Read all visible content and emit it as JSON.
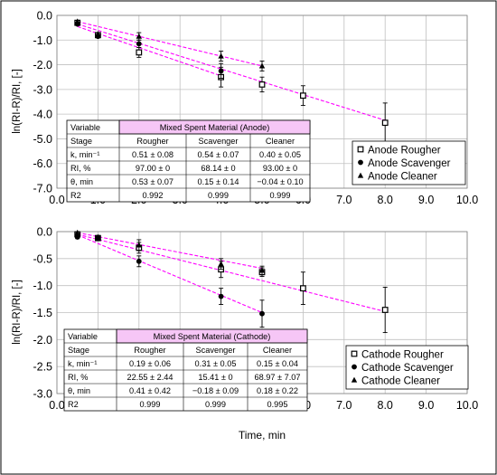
{
  "colors": {
    "grid": "#c0c0c0",
    "fit_line": "#ff00ff",
    "table_header_fill": "#f6c6f6",
    "marker": "#000000",
    "frame": "#000000"
  },
  "chart_data": [
    {
      "type": "scatter",
      "panel": "anode",
      "ylabel": "ln(RI-R)/RI, [-]",
      "xlabel": "",
      "xlim": [
        0,
        10
      ],
      "ylim": [
        -7,
        0
      ],
      "xticks": [
        "0.0",
        "1.0",
        "2.0",
        "3.0",
        "4.0",
        "5.0",
        "6.0",
        "7.0",
        "8.0",
        "9.0",
        "10.0"
      ],
      "yticks": [
        "0.0",
        "-1.0",
        "-2.0",
        "-3.0",
        "-4.0",
        "-5.0",
        "-6.0",
        "-7.0"
      ],
      "grid": true,
      "legend_position": "bottom-right",
      "series": [
        {
          "name": "Anode Rougher",
          "marker": "square",
          "x": [
            0.5,
            1,
            2,
            4,
            5,
            6,
            8
          ],
          "y": [
            -0.3,
            -0.8,
            -1.5,
            -2.5,
            -2.8,
            -3.25,
            -4.35
          ],
          "err": [
            0.05,
            0.05,
            0.2,
            0.4,
            0.3,
            0.4,
            0.8
          ]
        },
        {
          "name": "Anode Scavenger",
          "marker": "circle",
          "x": [
            0.5,
            1,
            2,
            4
          ],
          "y": [
            -0.35,
            -0.85,
            -1.15,
            -2.25
          ],
          "err": [
            0.05,
            0.05,
            0.15,
            0.3
          ]
        },
        {
          "name": "Anode Cleaner",
          "marker": "triangle",
          "x": [
            0.5,
            1,
            2,
            4,
            5
          ],
          "y": [
            -0.25,
            -0.75,
            -0.85,
            -1.65,
            -2.05
          ],
          "err": [
            0.05,
            0.05,
            0.15,
            0.2,
            0.2
          ]
        }
      ],
      "fit_lines": [
        {
          "x": [
            0.5,
            8
          ],
          "y": [
            -0.35,
            -4.25
          ]
        },
        {
          "x": [
            0.5,
            4
          ],
          "y": [
            -0.45,
            -2.45
          ]
        },
        {
          "x": [
            0.5,
            5
          ],
          "y": [
            -0.25,
            -2.05
          ]
        }
      ],
      "table": {
        "title": "Mixed Spent Material (Anode)",
        "header": [
          "Variable",
          "Stage",
          "Rougher",
          "Scavenger",
          "Cleaner"
        ],
        "rows": [
          [
            "k, min⁻¹",
            "0.51 ± 0.08",
            "0.54 ± 0.07",
            "0.40 ± 0.05"
          ],
          [
            "RI, %",
            "97.00 ± 0",
            "68.14 ± 0",
            "93.00 ± 0"
          ],
          [
            "θ, min",
            "0.53 ± 0.07",
            "0.15 ± 0.14",
            "−0.04 ± 0.10"
          ],
          [
            "R2",
            "0.992",
            "0.999",
            "0.999"
          ]
        ]
      }
    },
    {
      "type": "scatter",
      "panel": "cathode",
      "ylabel": "ln(RI-R)/RI, [-]",
      "xlabel": "Time, min",
      "xlim": [
        0,
        10
      ],
      "ylim": [
        -3,
        0
      ],
      "xticks": [
        "0.0",
        "1.0",
        "2.0",
        "3.0",
        "4.0",
        "5.0",
        "6.0",
        "7.0",
        "8.0",
        "9.0",
        "10.0"
      ],
      "yticks": [
        "0.0",
        "-0.5",
        "-1.0",
        "-1.5",
        "-2.0",
        "-2.5",
        "-3.0"
      ],
      "grid": true,
      "legend_position": "bottom-right",
      "series": [
        {
          "name": "Cathode Rougher",
          "marker": "square",
          "x": [
            0.5,
            1,
            2,
            4,
            5,
            6,
            8
          ],
          "y": [
            -0.05,
            -0.12,
            -0.3,
            -0.7,
            -0.75,
            -1.05,
            -1.45
          ],
          "err": [
            0.03,
            0.03,
            0.1,
            0.15,
            0.08,
            0.3,
            0.42
          ]
        },
        {
          "name": "Cathode Scavenger",
          "marker": "circle",
          "x": [
            0.5,
            1,
            2,
            4,
            5
          ],
          "y": [
            -0.1,
            -0.12,
            -0.55,
            -1.2,
            -1.52
          ],
          "err": [
            0.03,
            0.03,
            0.1,
            0.15,
            0.25
          ]
        },
        {
          "name": "Cathode Cleaner",
          "marker": "triangle",
          "x": [
            0.5,
            1,
            2,
            4,
            5
          ],
          "y": [
            -0.02,
            -0.1,
            -0.25,
            -0.6,
            -0.72
          ],
          "err": [
            0.02,
            0.03,
            0.1,
            0.1,
            0.08
          ]
        }
      ],
      "fit_lines": [
        {
          "x": [
            0.5,
            8
          ],
          "y": [
            -0.05,
            -1.48
          ]
        },
        {
          "x": [
            0.5,
            5
          ],
          "y": [
            -0.06,
            -1.5
          ]
        },
        {
          "x": [
            0.5,
            5
          ],
          "y": [
            -0.02,
            -0.68
          ]
        }
      ],
      "table": {
        "title": "Mixed Spent Material (Cathode)",
        "header": [
          "Variable",
          "Stage",
          "Rougher",
          "Scavenger",
          "Cleaner"
        ],
        "rows": [
          [
            "k, min⁻¹",
            "0.19 ± 0.06",
            "0.31 ± 0.05",
            "0.15 ± 0.04"
          ],
          [
            "RI, %",
            "22.55 ± 2.44",
            "15.41 ± 0",
            "68.97 ± 7.07"
          ],
          [
            "θ, min",
            "0.41 ± 0.42",
            "−0.18 ± 0.09",
            "0.18 ± 0.22"
          ],
          [
            "R2",
            "0.999",
            "0.999",
            "0.995"
          ]
        ]
      }
    }
  ]
}
